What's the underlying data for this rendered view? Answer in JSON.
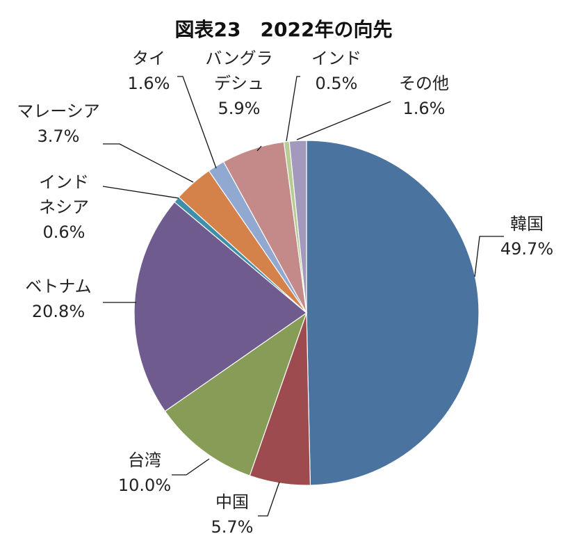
{
  "chart_data": {
    "type": "pie",
    "title": "図表23　2022年の向先",
    "slices": [
      {
        "label_lines": [
          "韓国"
        ],
        "value_label": "49.7%",
        "value": 49.7,
        "color": "#4a73a0"
      },
      {
        "label_lines": [
          "中国"
        ],
        "value_label": "5.7%",
        "value": 5.7,
        "color": "#9d4b4e"
      },
      {
        "label_lines": [
          "台湾"
        ],
        "value_label": "10.0%",
        "value": 10.0,
        "color": "#879d57"
      },
      {
        "label_lines": [
          "ベトナム"
        ],
        "value_label": "20.8%",
        "value": 20.8,
        "color": "#6f5b8e"
      },
      {
        "label_lines": [
          "インド",
          "ネシア"
        ],
        "value_label": "0.6%",
        "value": 0.6,
        "color": "#3f8eaa"
      },
      {
        "label_lines": [
          "マレーシア"
        ],
        "value_label": "3.7%",
        "value": 3.7,
        "color": "#d5824a"
      },
      {
        "label_lines": [
          "タイ"
        ],
        "value_label": "1.6%",
        "value": 1.6,
        "color": "#91a8d0"
      },
      {
        "label_lines": [
          "バングラ",
          "デシュ"
        ],
        "value_label": "5.9%",
        "value": 5.9,
        "color": "#c48a8a"
      },
      {
        "label_lines": [
          "インド"
        ],
        "value_label": "0.5%",
        "value": 0.5,
        "color": "#b7cc92"
      },
      {
        "label_lines": [
          "その他"
        ],
        "value_label": "1.6%",
        "value": 1.6,
        "color": "#a399bd"
      }
    ],
    "start": "top",
    "direction": "clockwise"
  }
}
